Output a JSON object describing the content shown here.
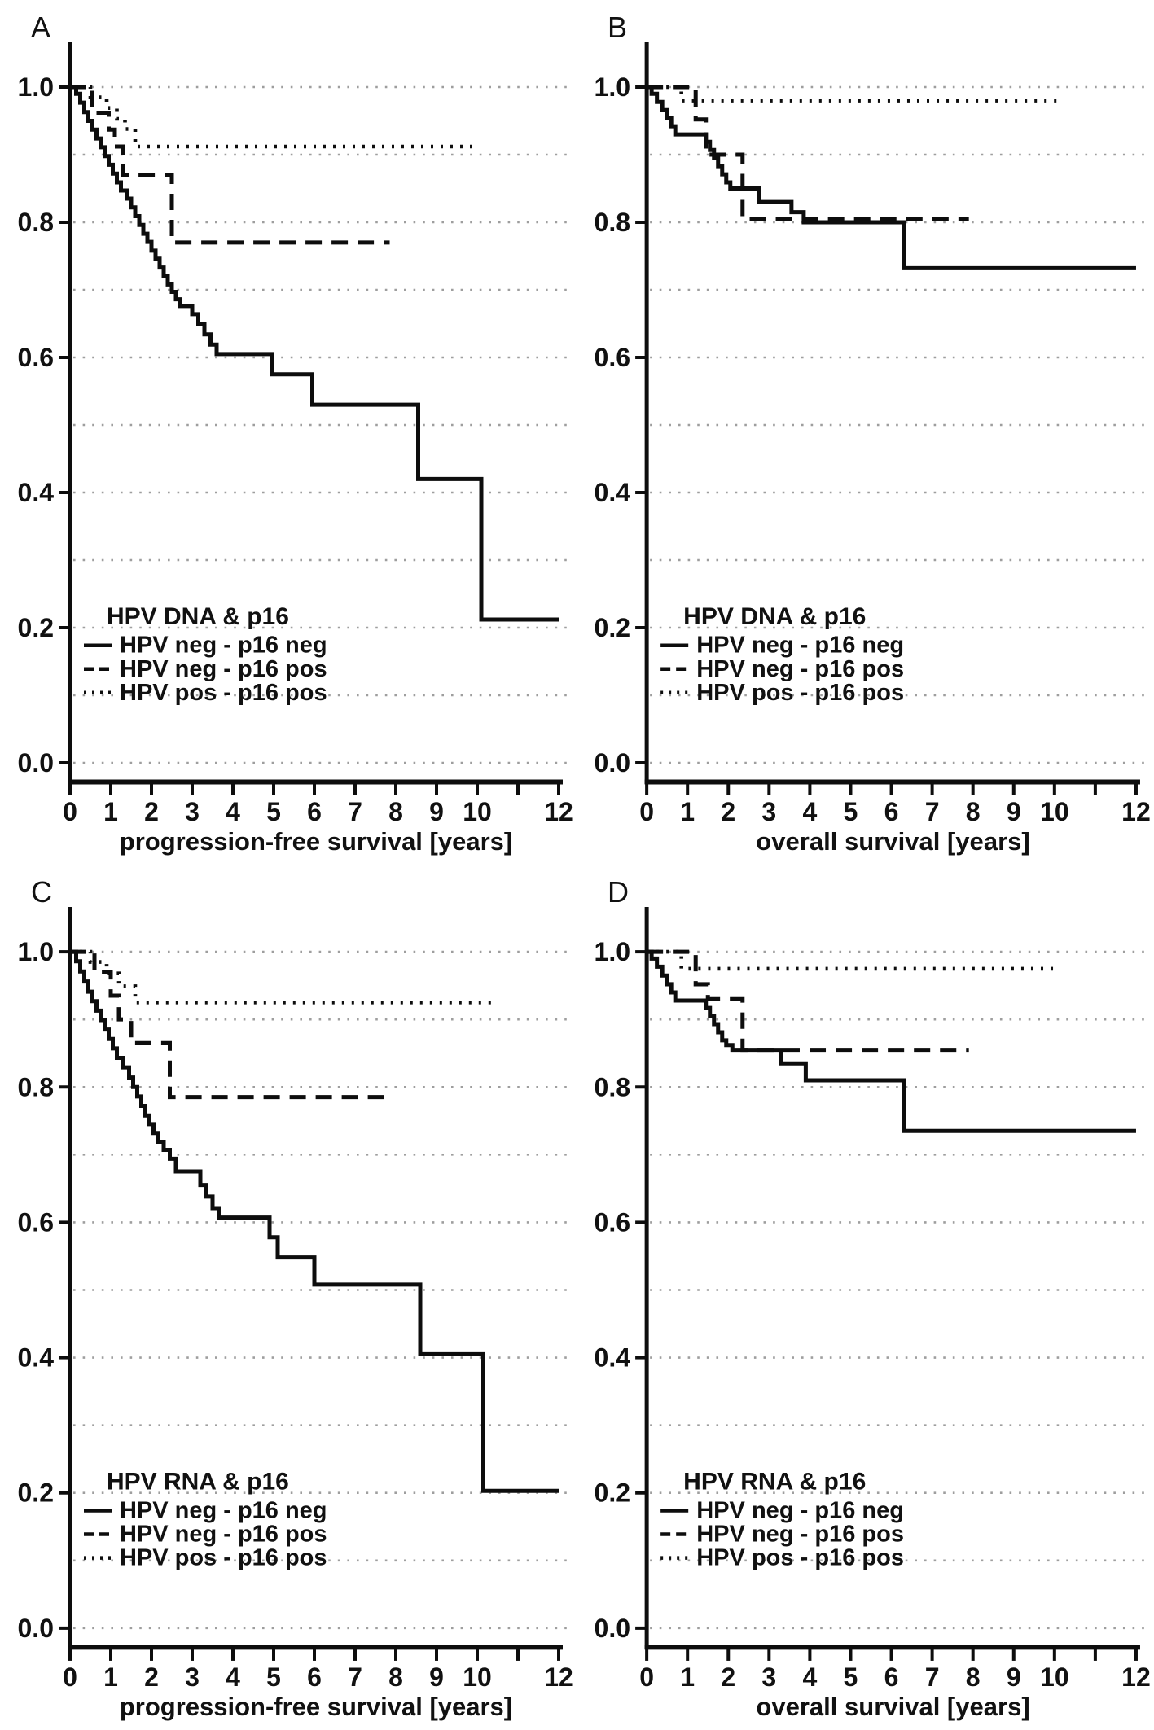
{
  "figure": {
    "background": "#ffffff",
    "curve_color": "#0d0d0d",
    "grid_color": "#9e9e9e",
    "text_color": "#111111"
  },
  "axes": {
    "x_range": [
      0,
      12
    ],
    "y_range": [
      0.0,
      1.0
    ],
    "x_tick_values": [
      0,
      1,
      2,
      3,
      4,
      5,
      6,
      7,
      8,
      9,
      10,
      11,
      12
    ],
    "x_tick_labels": [
      "0",
      "1",
      "2",
      "3",
      "4",
      "5",
      "6",
      "7",
      "8",
      "9",
      "10",
      "",
      "12"
    ],
    "y_tick_values": [
      1.0,
      0.8,
      0.6,
      0.4,
      0.2,
      0.0
    ],
    "y_tick_labels": [
      "1.0",
      "0.8",
      "0.6",
      "0.4",
      "0.2",
      "0.0"
    ],
    "grid": "horizontal dotted lines every 0.1"
  },
  "legend_entries": [
    {
      "style": "solid",
      "label": "HPV neg - p16 neg"
    },
    {
      "style": "dashed",
      "label": "HPV neg - p16 pos"
    },
    {
      "style": "dotted",
      "label": "HPV pos - p16 pos"
    }
  ],
  "chart_data": [
    {
      "type": "line",
      "subtype": "kaplan-meier-step",
      "panel_label": "A",
      "xlabel": "progression-free survival [years]",
      "ylabel": "",
      "xlim": [
        0,
        12
      ],
      "ylim": [
        0.0,
        1.05
      ],
      "grid": "dotted horizontal every 0.1",
      "legend_title": "HPV DNA & p16",
      "legend_position": "lower left",
      "series": [
        {
          "name": "HPV neg - p16 neg",
          "style": "solid",
          "end_x": 12,
          "points": [
            [
              0,
              1.0
            ],
            [
              0.15,
              0.99
            ],
            [
              0.25,
              0.977
            ],
            [
              0.35,
              0.963
            ],
            [
              0.45,
              0.95
            ],
            [
              0.55,
              0.937
            ],
            [
              0.65,
              0.924
            ],
            [
              0.75,
              0.911
            ],
            [
              0.85,
              0.898
            ],
            [
              0.95,
              0.885
            ],
            [
              1.05,
              0.872
            ],
            [
              1.15,
              0.859
            ],
            [
              1.25,
              0.847
            ],
            [
              1.4,
              0.835
            ],
            [
              1.5,
              0.822
            ],
            [
              1.6,
              0.809
            ],
            [
              1.7,
              0.796
            ],
            [
              1.8,
              0.783
            ],
            [
              1.9,
              0.771
            ],
            [
              2.0,
              0.758
            ],
            [
              2.1,
              0.746
            ],
            [
              2.2,
              0.733
            ],
            [
              2.3,
              0.72
            ],
            [
              2.4,
              0.708
            ],
            [
              2.5,
              0.697
            ],
            [
              2.6,
              0.686
            ],
            [
              2.7,
              0.676
            ],
            [
              3.0,
              0.664
            ],
            [
              3.15,
              0.649
            ],
            [
              3.3,
              0.634
            ],
            [
              3.45,
              0.619
            ],
            [
              3.6,
              0.605
            ],
            [
              4.95,
              0.575
            ],
            [
              5.95,
              0.53
            ],
            [
              8.55,
              0.42
            ],
            [
              10.1,
              0.212
            ]
          ]
        },
        {
          "name": "HPV neg - p16 pos",
          "style": "dashed",
          "end_x": 7.85,
          "points": [
            [
              0,
              1.0
            ],
            [
              0.55,
              0.962
            ],
            [
              0.95,
              0.937
            ],
            [
              1.1,
              0.912
            ],
            [
              1.3,
              0.87
            ],
            [
              2.5,
              0.77
            ]
          ]
        },
        {
          "name": "HPV pos - p16 pos",
          "style": "dotted",
          "end_x": 10.05,
          "points": [
            [
              0,
              1.0
            ],
            [
              0.5,
              0.985
            ],
            [
              0.9,
              0.969
            ],
            [
              1.15,
              0.953
            ],
            [
              1.35,
              0.938
            ],
            [
              1.6,
              0.912
            ]
          ]
        }
      ]
    },
    {
      "type": "line",
      "subtype": "kaplan-meier-step",
      "panel_label": "B",
      "xlabel": "overall survival [years]",
      "ylabel": "",
      "xlim": [
        0,
        12
      ],
      "ylim": [
        0.0,
        1.05
      ],
      "grid": "dotted horizontal every 0.1",
      "legend_title": "HPV DNA & p16",
      "legend_position": "lower left",
      "series": [
        {
          "name": "HPV neg - p16 neg",
          "style": "solid",
          "end_x": 12,
          "points": [
            [
              0,
              1.0
            ],
            [
              0.12,
              0.99
            ],
            [
              0.25,
              0.978
            ],
            [
              0.38,
              0.966
            ],
            [
              0.5,
              0.954
            ],
            [
              0.6,
              0.942
            ],
            [
              0.7,
              0.93
            ],
            [
              1.45,
              0.919
            ],
            [
              1.55,
              0.907
            ],
            [
              1.65,
              0.895
            ],
            [
              1.75,
              0.883
            ],
            [
              1.85,
              0.871
            ],
            [
              1.95,
              0.859
            ],
            [
              2.05,
              0.85
            ],
            [
              2.75,
              0.83
            ],
            [
              3.55,
              0.815
            ],
            [
              3.85,
              0.8
            ],
            [
              6.3,
              0.732
            ]
          ]
        },
        {
          "name": "HPV neg - p16 pos",
          "style": "dashed",
          "end_x": 7.9,
          "points": [
            [
              0,
              1.0
            ],
            [
              1.2,
              0.952
            ],
            [
              1.45,
              0.9
            ],
            [
              2.35,
              0.805
            ]
          ]
        },
        {
          "name": "HPV pos - p16 pos",
          "style": "dotted",
          "end_x": 10.05,
          "points": [
            [
              0,
              1.0
            ],
            [
              0.85,
              0.98
            ]
          ]
        }
      ]
    },
    {
      "type": "line",
      "subtype": "kaplan-meier-step",
      "panel_label": "C",
      "xlabel": "progression-free survival [years]",
      "ylabel": "",
      "xlim": [
        0,
        12
      ],
      "ylim": [
        0.0,
        1.05
      ],
      "grid": "dotted horizontal every 0.1",
      "legend_title": "HPV RNA & p16",
      "legend_position": "lower left",
      "series": [
        {
          "name": "HPV neg - p16 neg",
          "style": "solid",
          "end_x": 12,
          "points": [
            [
              0,
              1.0
            ],
            [
              0.15,
              0.986
            ],
            [
              0.25,
              0.971
            ],
            [
              0.35,
              0.956
            ],
            [
              0.45,
              0.941
            ],
            [
              0.55,
              0.927
            ],
            [
              0.65,
              0.913
            ],
            [
              0.75,
              0.899
            ],
            [
              0.85,
              0.885
            ],
            [
              0.95,
              0.871
            ],
            [
              1.05,
              0.857
            ],
            [
              1.15,
              0.843
            ],
            [
              1.3,
              0.829
            ],
            [
              1.45,
              0.814
            ],
            [
              1.55,
              0.8
            ],
            [
              1.65,
              0.786
            ],
            [
              1.75,
              0.772
            ],
            [
              1.85,
              0.758
            ],
            [
              1.95,
              0.745
            ],
            [
              2.05,
              0.732
            ],
            [
              2.15,
              0.719
            ],
            [
              2.3,
              0.707
            ],
            [
              2.45,
              0.694
            ],
            [
              2.6,
              0.675
            ],
            [
              3.2,
              0.655
            ],
            [
              3.35,
              0.638
            ],
            [
              3.5,
              0.621
            ],
            [
              3.65,
              0.607
            ],
            [
              4.9,
              0.578
            ],
            [
              5.1,
              0.548
            ],
            [
              6.0,
              0.508
            ],
            [
              8.6,
              0.405
            ],
            [
              10.15,
              0.203
            ]
          ]
        },
        {
          "name": "HPV neg - p16 pos",
          "style": "dashed",
          "end_x": 7.85,
          "points": [
            [
              0,
              1.0
            ],
            [
              0.6,
              0.97
            ],
            [
              1.0,
              0.935
            ],
            [
              1.2,
              0.9
            ],
            [
              1.5,
              0.865
            ],
            [
              2.45,
              0.785
            ]
          ]
        },
        {
          "name": "HPV pos - p16 pos",
          "style": "dotted",
          "end_x": 10.35,
          "points": [
            [
              0,
              1.0
            ],
            [
              0.5,
              0.985
            ],
            [
              0.9,
              0.968
            ],
            [
              1.2,
              0.949
            ],
            [
              1.6,
              0.925
            ]
          ]
        }
      ]
    },
    {
      "type": "line",
      "subtype": "kaplan-meier-step",
      "panel_label": "D",
      "xlabel": "overall survival [years]",
      "ylabel": "",
      "xlim": [
        0,
        12
      ],
      "ylim": [
        0.0,
        1.05
      ],
      "grid": "dotted horizontal every 0.1",
      "legend_title": "HPV RNA & p16",
      "legend_position": "lower left",
      "series": [
        {
          "name": "HPV neg - p16 neg",
          "style": "solid",
          "end_x": 12,
          "points": [
            [
              0,
              1.0
            ],
            [
              0.12,
              0.99
            ],
            [
              0.25,
              0.978
            ],
            [
              0.38,
              0.965
            ],
            [
              0.5,
              0.952
            ],
            [
              0.6,
              0.94
            ],
            [
              0.7,
              0.928
            ],
            [
              1.45,
              0.917
            ],
            [
              1.55,
              0.905
            ],
            [
              1.65,
              0.893
            ],
            [
              1.75,
              0.881
            ],
            [
              1.85,
              0.869
            ],
            [
              1.95,
              0.862
            ],
            [
              2.1,
              0.855
            ],
            [
              3.3,
              0.835
            ],
            [
              3.9,
              0.81
            ],
            [
              6.3,
              0.735
            ]
          ]
        },
        {
          "name": "HPV neg - p16 pos",
          "style": "dashed",
          "end_x": 7.9,
          "points": [
            [
              0,
              1.0
            ],
            [
              1.2,
              0.952
            ],
            [
              1.5,
              0.93
            ],
            [
              2.35,
              0.855
            ]
          ]
        },
        {
          "name": "HPV pos - p16 pos",
          "style": "dotted",
          "end_x": 10.05,
          "points": [
            [
              0,
              1.0
            ],
            [
              0.85,
              0.975
            ]
          ]
        }
      ]
    }
  ]
}
